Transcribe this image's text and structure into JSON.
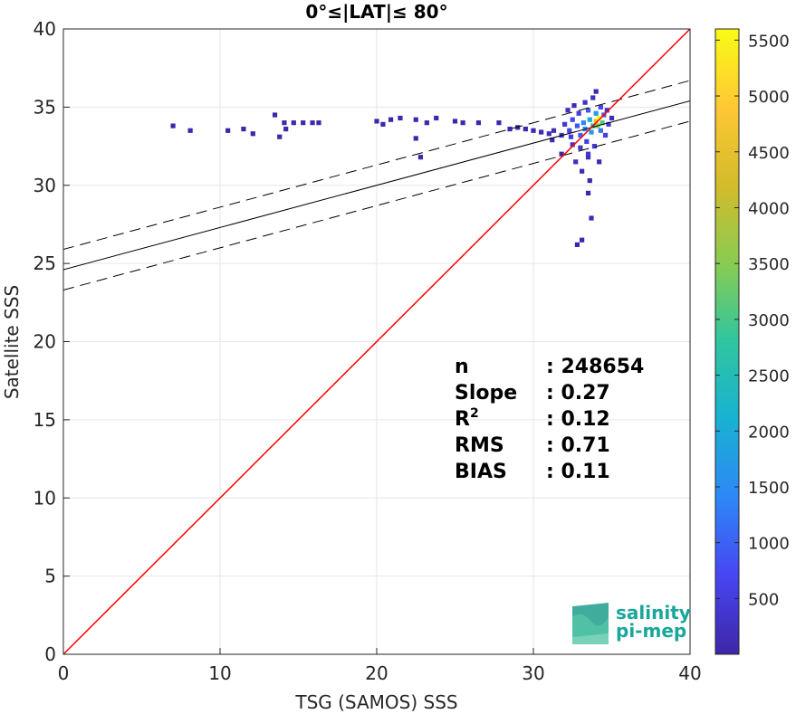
{
  "chart_data": {
    "type": "heatmap",
    "title": "0°≤|LAT|≤ 80°",
    "xlabel": "TSG (SAMOS) SSS",
    "ylabel": "Satellite SSS",
    "xlim": [
      0,
      40
    ],
    "ylim": [
      0,
      40
    ],
    "xticks": [
      0,
      10,
      20,
      30,
      40
    ],
    "yticks": [
      0,
      5,
      10,
      15,
      20,
      25,
      30,
      35,
      40
    ],
    "grid": true,
    "one_to_one_line": {
      "color": "#ff0000",
      "from": [
        0,
        0
      ],
      "to": [
        40,
        40
      ]
    },
    "regression_line": {
      "intercept": 24.6,
      "slope": 0.27,
      "color": "#000000"
    },
    "confidence_band": {
      "intercept_upper": 25.9,
      "intercept_lower": 23.3,
      "style": "dashed"
    },
    "colorbar": {
      "min": 1,
      "max": 5600,
      "ticks": [
        500,
        1000,
        1500,
        2000,
        2500,
        3000,
        3500,
        4000,
        4500,
        5000,
        5500
      ],
      "colormap": [
        "#3e26a8",
        "#4745f2",
        "#2e87f7",
        "#18b1d2",
        "#2fc59f",
        "#88cc52",
        "#d3bb2a",
        "#fec834",
        "#f9fb15"
      ]
    },
    "stats": [
      {
        "label": "n",
        "value": ": 248654"
      },
      {
        "label": "Slope",
        "value": ": 0.27"
      },
      {
        "label": "R",
        "sup": "2",
        "value": ": 0.12"
      },
      {
        "label": "RMS",
        "value": ": 0.71"
      },
      {
        "label": "BIAS",
        "value": ": 0.11"
      }
    ],
    "points": [
      [
        7.0,
        33.8,
        20
      ],
      [
        8.1,
        33.5,
        20
      ],
      [
        10.5,
        33.5,
        15
      ],
      [
        11.5,
        33.6,
        15
      ],
      [
        12.1,
        33.3,
        15
      ],
      [
        13.5,
        34.5,
        25
      ],
      [
        13.8,
        33.1,
        15
      ],
      [
        14.2,
        33.6,
        15
      ],
      [
        14.1,
        34.0,
        60
      ],
      [
        14.7,
        34.0,
        60
      ],
      [
        15.3,
        34.0,
        60
      ],
      [
        15.9,
        34.0,
        60
      ],
      [
        16.3,
        34.0,
        20
      ],
      [
        20.0,
        34.1,
        25
      ],
      [
        20.4,
        33.9,
        25
      ],
      [
        20.9,
        34.2,
        25
      ],
      [
        21.5,
        34.3,
        20
      ],
      [
        22.5,
        34.2,
        20
      ],
      [
        23.2,
        34.0,
        15
      ],
      [
        23.8,
        34.3,
        15
      ],
      [
        22.5,
        33.0,
        15
      ],
      [
        22.8,
        31.8,
        15
      ],
      [
        25.0,
        34.1,
        15
      ],
      [
        25.5,
        34.0,
        15
      ],
      [
        26.5,
        34.0,
        15
      ],
      [
        27.8,
        34.0,
        20
      ],
      [
        28.5,
        33.6,
        30
      ],
      [
        29.0,
        33.7,
        30
      ],
      [
        29.5,
        33.6,
        40
      ],
      [
        30.0,
        33.5,
        60
      ],
      [
        30.5,
        33.4,
        80
      ],
      [
        31.0,
        33.3,
        150
      ],
      [
        31.3,
        33.5,
        200
      ],
      [
        31.2,
        32.9,
        100
      ],
      [
        31.8,
        33.2,
        300
      ],
      [
        31.8,
        32.0,
        80
      ],
      [
        32.0,
        33.9,
        400
      ],
      [
        32.2,
        34.8,
        200
      ],
      [
        32.3,
        33.5,
        600
      ],
      [
        32.4,
        33.1,
        500
      ],
      [
        32.5,
        34.2,
        700
      ],
      [
        32.5,
        32.6,
        300
      ],
      [
        32.6,
        35.1,
        100
      ],
      [
        32.7,
        31.5,
        200
      ],
      [
        32.8,
        33.8,
        900
      ],
      [
        32.9,
        34.6,
        500
      ],
      [
        33.0,
        33.2,
        1000
      ],
      [
        33.0,
        32.4,
        300
      ],
      [
        33.1,
        30.9,
        100
      ],
      [
        33.2,
        34.0,
        1400
      ],
      [
        33.3,
        35.3,
        300
      ],
      [
        33.3,
        33.6,
        1500
      ],
      [
        33.4,
        32.8,
        500
      ],
      [
        33.5,
        34.8,
        900
      ],
      [
        33.5,
        31.8,
        150
      ],
      [
        33.5,
        29.5,
        30
      ],
      [
        33.6,
        34.2,
        2000
      ],
      [
        33.7,
        33.4,
        1700
      ],
      [
        33.7,
        27.9,
        60
      ],
      [
        33.8,
        35.6,
        200
      ],
      [
        33.8,
        33.8,
        2500
      ],
      [
        33.9,
        32.5,
        400
      ],
      [
        34.0,
        34.1,
        4500
      ],
      [
        34.0,
        34.6,
        1800
      ],
      [
        34.1,
        33.8,
        3500
      ],
      [
        34.2,
        34.3,
        5600
      ],
      [
        34.3,
        33.5,
        1200
      ],
      [
        34.3,
        35.0,
        700
      ],
      [
        34.4,
        34.0,
        3000
      ],
      [
        34.5,
        34.5,
        900
      ],
      [
        34.6,
        33.2,
        600
      ],
      [
        34.7,
        34.8,
        300
      ],
      [
        34.8,
        33.9,
        500
      ],
      [
        35.0,
        34.3,
        150
      ],
      [
        34.2,
        31.5,
        80
      ],
      [
        33.6,
        30.3,
        40
      ],
      [
        33.1,
        26.5,
        15
      ],
      [
        32.8,
        26.2,
        15
      ],
      [
        34.0,
        36.0,
        60
      ],
      [
        33.5,
        32.0,
        350
      ]
    ]
  },
  "logo": {
    "line1": "salinity",
    "line2": "pi-mep"
  }
}
